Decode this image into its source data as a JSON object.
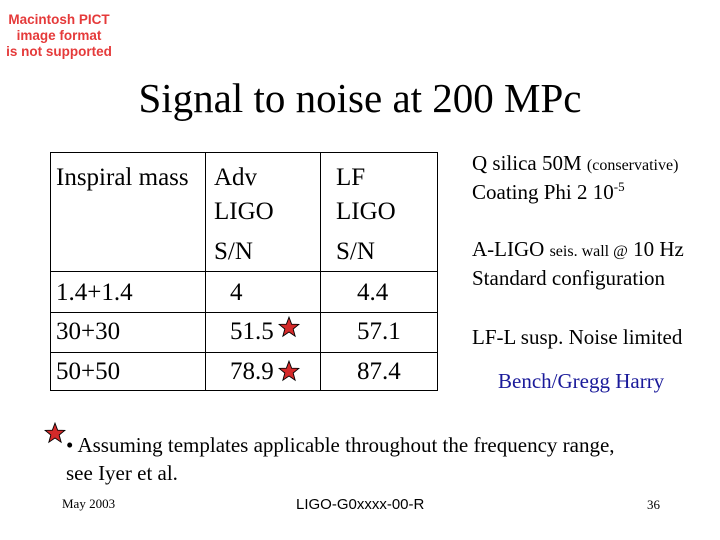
{
  "placeholder": {
    "line1": "Macintosh PICT",
    "line2": "image format",
    "line3": "is not supported"
  },
  "title": "Signal to noise at 200 MPc",
  "table": {
    "header": {
      "col1": "Inspiral mass",
      "col2": [
        "Adv",
        "LIGO",
        "S/N"
      ],
      "col3": [
        "LF",
        "LIGO",
        "S/N"
      ]
    },
    "rows": [
      {
        "mass": "1.4+1.4",
        "adv": "4",
        "lf": "4.4",
        "starred": false
      },
      {
        "mass": "30+30",
        "adv": "51.5",
        "lf": "57.1",
        "starred": true
      },
      {
        "mass": "50+50",
        "adv": "78.9",
        "lf": "87.4",
        "starred": true
      }
    ]
  },
  "notes": {
    "n1_main": "Q silica 50M",
    "n1_small": "(conservative)",
    "n2_main": "Coating Phi 2 10",
    "n2_sup": "-5",
    "n3_pre": "A-LIGO",
    "n3_small": "seis. wall @",
    "n3_post": "10 Hz",
    "n4": "Standard configuration",
    "n5": "LF-L susp. Noise limited",
    "bench": "Bench/Gregg Harry"
  },
  "assumption": "• Assuming templates applicable throughout the frequency range, see Iyer et al.",
  "footer": {
    "date": "May 2003",
    "doc": "LIGO-G0xxxx-00-R",
    "page": "36"
  },
  "colors": {
    "star_fill": "#d42a2a",
    "placeholder_text": "#e53a3a",
    "bench_text": "#1a1a9a"
  }
}
